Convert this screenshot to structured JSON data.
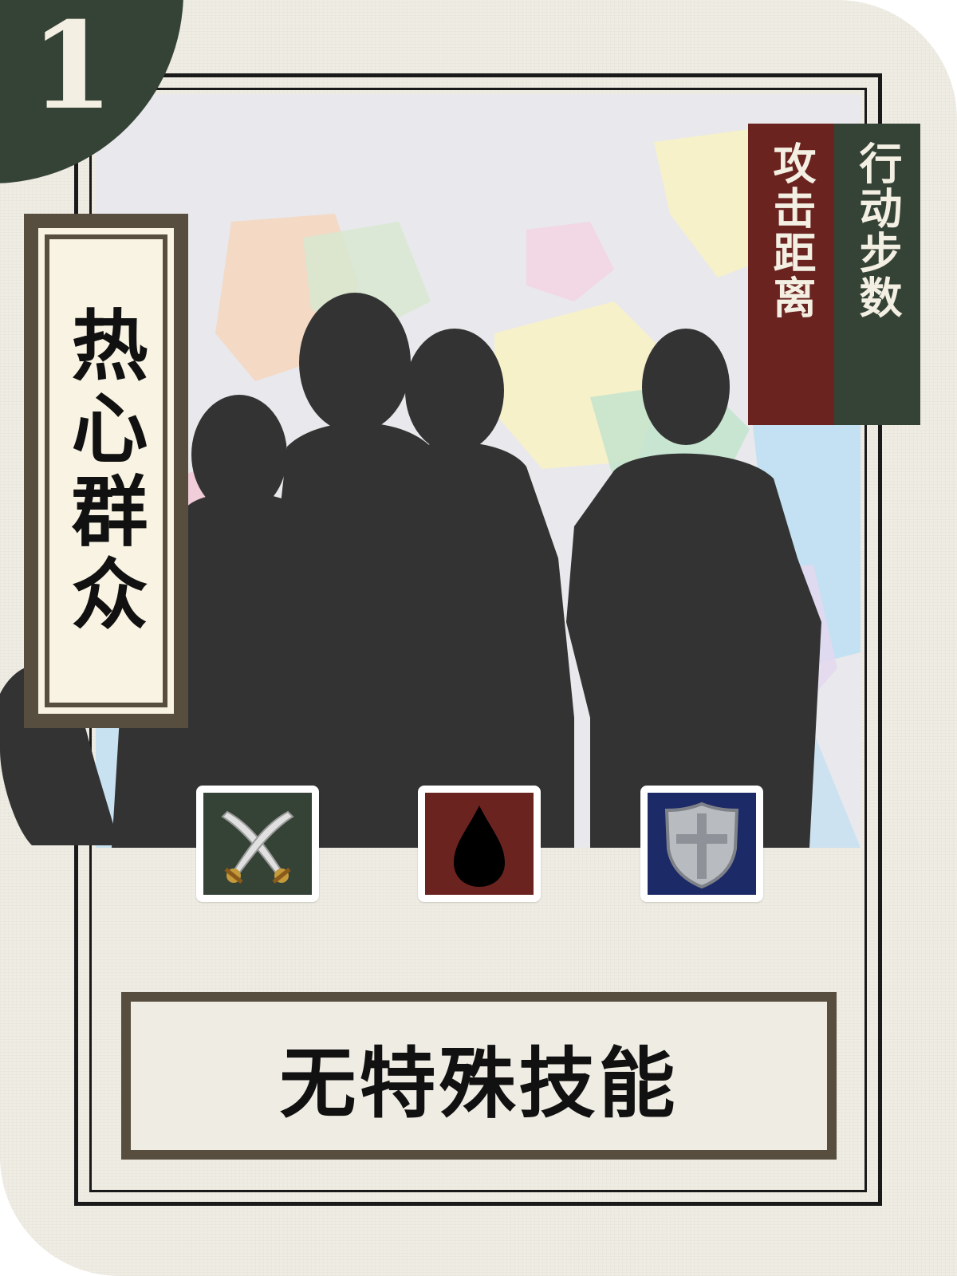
{
  "card": {
    "cost": "1",
    "name": "热心群众",
    "stats": {
      "attack_range_label": "攻击距离",
      "move_steps_label": "行动步数"
    },
    "icons": [
      {
        "name": "crossed-swords-icon",
        "color": "#354236"
      },
      {
        "name": "blood-drop-icon",
        "color": "#6b2320"
      },
      {
        "name": "shield-icon",
        "color": "#1d2a68"
      }
    ],
    "skill": "无特殊技能"
  },
  "colors": {
    "dark_green": "#354236",
    "dark_red": "#6b2320",
    "navy": "#1d2a68",
    "frame_brown": "#574e3f",
    "paper": "#efece3",
    "silhouette": "#333333"
  }
}
